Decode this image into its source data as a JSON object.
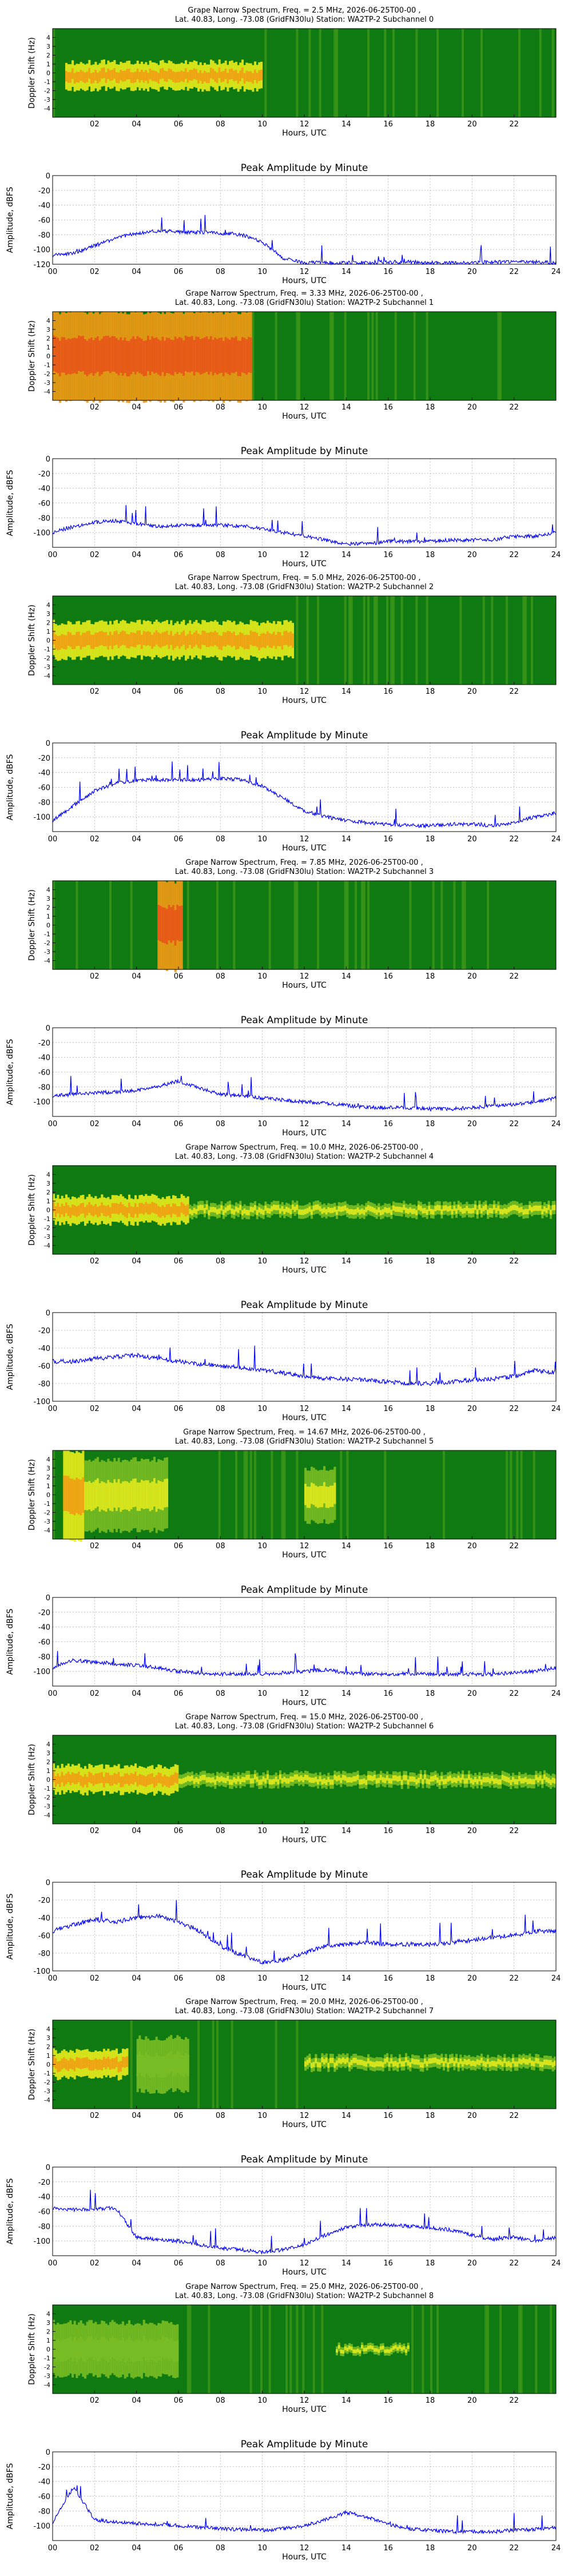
{
  "page": {
    "background": "#ffffff"
  },
  "colors": {
    "line": "#0000ff",
    "grid": "#b0b0b0",
    "axis": "#000000",
    "spec_dark": "#0f7a12",
    "spec_mid": "#79bd24",
    "spec_yellow": "#e8ec1c",
    "spec_orange": "#f29a14",
    "spec_red": "#e8501a"
  },
  "spectrum_ylabel": "Doppler Shift (Hz)",
  "spectrum_xlabel": "Hours, UTC",
  "spectrum_yticks": [
    "4",
    "3",
    "2",
    "1",
    "0",
    "-1",
    "-2",
    "-3",
    "-4"
  ],
  "spectrum_xticks": [
    "02",
    "04",
    "06",
    "08",
    "10",
    "12",
    "14",
    "16",
    "18",
    "20",
    "22"
  ],
  "amp_title": "Peak Amplitude by Minute",
  "amp_ylabel": "Amplitude, dBFS",
  "amp_xlabel": "Hours, UTC",
  "amp_xticks": [
    "00",
    "02",
    "04",
    "06",
    "08",
    "10",
    "12",
    "14",
    "16",
    "18",
    "20",
    "22",
    "24"
  ],
  "chart_data": [
    {
      "type": "heatmap",
      "title": "Grape Narrow Spectrum, Freq. = 2.5 MHz, 2026-06-25T00-00 ,",
      "subtitle": "Lat.  40.83, Long. -73.08 (GridFN30lu) Station: WA2TP-2 Subchannel 0",
      "xlabel": "Hours, UTC",
      "ylabel": "Doppler Shift (Hz)",
      "xlim": [
        0,
        24
      ],
      "ylim": [
        -5,
        5
      ],
      "bands": [
        {
          "from": 0.6,
          "to": 10.0,
          "level": 3,
          "center": -0.3,
          "width": 3.0
        }
      ]
    },
    {
      "type": "line",
      "title": "Peak Amplitude by Minute",
      "xlabel": "Hours, UTC",
      "ylabel": "Amplitude, dBFS",
      "xlim": [
        0,
        24
      ],
      "ylim": [
        -120,
        0
      ],
      "yticks": [
        "0",
        "-20",
        "-40",
        "-60",
        "-80",
        "-100",
        "-120"
      ],
      "x": [
        0,
        1,
        2,
        3,
        4,
        5,
        6,
        7,
        8,
        9,
        10,
        11,
        12,
        13,
        14,
        15,
        16,
        17,
        18,
        19,
        20,
        21,
        22,
        23,
        24
      ],
      "values": [
        -108,
        -105,
        -95,
        -85,
        -78,
        -75,
        -76,
        -77,
        -78,
        -80,
        -90,
        -112,
        -118,
        -118,
        -118,
        -118,
        -117,
        -117,
        -118,
        -118,
        -118,
        -117,
        -117,
        -117,
        -118
      ]
    },
    {
      "type": "heatmap",
      "title": "Grape Narrow Spectrum, Freq. = 3.33 MHz, 2026-06-25T00-00 ,",
      "subtitle": "Lat.  40.83, Long. -73.08 (GridFN30lu) Station: WA2TP-2 Subchannel 1",
      "xlabel": "Hours, UTC",
      "ylabel": "Doppler Shift (Hz)",
      "xlim": [
        0,
        24
      ],
      "ylim": [
        -5,
        5
      ],
      "bands": [
        {
          "from": 0.0,
          "to": 9.5,
          "level": 4,
          "center": 0,
          "width": 10
        }
      ]
    },
    {
      "type": "line",
      "title": "Peak Amplitude by Minute",
      "xlabel": "Hours, UTC",
      "ylabel": "Amplitude, dBFS",
      "xlim": [
        0,
        24
      ],
      "ylim": [
        -120,
        0
      ],
      "yticks": [
        "0",
        "-20",
        "-40",
        "-60",
        "-80",
        "-100"
      ],
      "x": [
        0,
        1,
        2,
        3,
        4,
        5,
        6,
        7,
        8,
        9,
        10,
        11,
        12,
        13,
        14,
        15,
        16,
        17,
        18,
        19,
        20,
        21,
        22,
        23,
        24
      ],
      "values": [
        -100,
        -92,
        -86,
        -84,
        -88,
        -92,
        -90,
        -90,
        -90,
        -91,
        -95,
        -100,
        -105,
        -110,
        -115,
        -115,
        -112,
        -112,
        -112,
        -110,
        -110,
        -110,
        -105,
        -105,
        -100
      ]
    },
    {
      "type": "heatmap",
      "title": "Grape Narrow Spectrum, Freq. = 5.0 MHz, 2026-06-25T00-00 ,",
      "subtitle": "Lat.  40.83, Long. -73.08 (GridFN30lu) Station: WA2TP-2 Subchannel 2",
      "xlabel": "Hours, UTC",
      "ylabel": "Doppler Shift (Hz)",
      "xlim": [
        0,
        24
      ],
      "ylim": [
        -5,
        5
      ],
      "bands": [
        {
          "from": 0.0,
          "to": 11.5,
          "level": 3,
          "center": 0,
          "width": 4
        }
      ]
    },
    {
      "type": "line",
      "title": "Peak Amplitude by Minute",
      "xlabel": "Hours, UTC",
      "ylabel": "Amplitude, dBFS",
      "xlim": [
        0,
        24
      ],
      "ylim": [
        -120,
        0
      ],
      "yticks": [
        "0",
        "-20",
        "-40",
        "-60",
        "-80",
        "-100"
      ],
      "x": [
        0,
        1,
        2,
        3,
        4,
        5,
        6,
        7,
        8,
        9,
        10,
        11,
        12,
        13,
        14,
        15,
        16,
        17,
        18,
        19,
        20,
        21,
        22,
        23,
        24
      ],
      "values": [
        -105,
        -85,
        -65,
        -55,
        -50,
        -50,
        -50,
        -50,
        -48,
        -50,
        -58,
        -75,
        -92,
        -100,
        -105,
        -108,
        -110,
        -112,
        -112,
        -110,
        -110,
        -112,
        -108,
        -100,
        -95
      ]
    },
    {
      "type": "heatmap",
      "title": "Grape Narrow Spectrum, Freq. = 7.85 MHz, 2026-06-25T00-00 ,",
      "subtitle": "Lat.  40.83, Long. -73.08 (GridFN30lu) Station: WA2TP-2 Subchannel 3",
      "xlabel": "Hours, UTC",
      "ylabel": "Doppler Shift (Hz)",
      "xlim": [
        0,
        24
      ],
      "ylim": [
        -5,
        5
      ],
      "bands": [
        {
          "from": 5.0,
          "to": 6.2,
          "level": 4,
          "center": 0,
          "width": 10
        }
      ]
    },
    {
      "type": "line",
      "title": "Peak Amplitude by Minute",
      "xlabel": "Hours, UTC",
      "ylabel": "Amplitude, dBFS",
      "xlim": [
        0,
        24
      ],
      "ylim": [
        -120,
        0
      ],
      "yticks": [
        "0",
        "-20",
        "-40",
        "-60",
        "-80",
        "-100"
      ],
      "x": [
        0,
        1,
        2,
        3,
        4,
        5,
        6,
        7,
        8,
        9,
        10,
        11,
        12,
        13,
        14,
        15,
        16,
        17,
        18,
        19,
        20,
        21,
        22,
        23,
        24
      ],
      "values": [
        -92,
        -90,
        -88,
        -87,
        -85,
        -80,
        -72,
        -82,
        -90,
        -92,
        -95,
        -98,
        -100,
        -102,
        -105,
        -108,
        -108,
        -108,
        -110,
        -110,
        -108,
        -106,
        -104,
        -100,
        -95
      ]
    },
    {
      "type": "heatmap",
      "title": "Grape Narrow Spectrum, Freq. = 10.0 MHz, 2026-06-25T00-00 ,",
      "subtitle": "Lat.  40.83, Long. -73.08 (GridFN30lu) Station: WA2TP-2 Subchannel 4",
      "xlabel": "Hours, UTC",
      "ylabel": "Doppler Shift (Hz)",
      "xlim": [
        0,
        24
      ],
      "ylim": [
        -5,
        5
      ],
      "bands": [
        {
          "from": 0.0,
          "to": 6.5,
          "level": 3,
          "center": 0,
          "width": 3
        },
        {
          "from": 6.5,
          "to": 24.0,
          "level": 2,
          "center": 0,
          "width": 1.5
        }
      ]
    },
    {
      "type": "line",
      "title": "Peak Amplitude by Minute",
      "xlabel": "Hours, UTC",
      "ylabel": "Amplitude, dBFS",
      "xlim": [
        0,
        24
      ],
      "ylim": [
        -100,
        0
      ],
      "yticks": [
        "0",
        "-20",
        "-40",
        "-60",
        "-80",
        "-100"
      ],
      "x": [
        0,
        1,
        2,
        3,
        4,
        5,
        6,
        7,
        8,
        9,
        10,
        11,
        12,
        13,
        14,
        15,
        16,
        17,
        18,
        19,
        20,
        21,
        22,
        23,
        24
      ],
      "values": [
        -55,
        -55,
        -52,
        -50,
        -48,
        -52,
        -55,
        -58,
        -60,
        -62,
        -65,
        -68,
        -72,
        -74,
        -75,
        -76,
        -78,
        -80,
        -80,
        -78,
        -76,
        -75,
        -72,
        -65,
        -68
      ]
    },
    {
      "type": "heatmap",
      "title": "Grape Narrow Spectrum, Freq. = 14.67 MHz, 2026-06-25T00-00 ,",
      "subtitle": "Lat.  40.83, Long. -73.08 (GridFN30lu) Station: WA2TP-2 Subchannel 5",
      "xlabel": "Hours, UTC",
      "ylabel": "Doppler Shift (Hz)",
      "xlim": [
        0,
        24
      ],
      "ylim": [
        -5,
        5
      ],
      "bands": [
        {
          "from": 0.5,
          "to": 1.5,
          "level": 3,
          "center": 0,
          "width": 10
        },
        {
          "from": 1.5,
          "to": 5.5,
          "level": 2,
          "center": 0,
          "width": 8
        },
        {
          "from": 12.0,
          "to": 13.5,
          "level": 2,
          "center": 0,
          "width": 6
        }
      ]
    },
    {
      "type": "line",
      "title": "Peak Amplitude by Minute",
      "xlabel": "Hours, UTC",
      "ylabel": "Amplitude, dBFS",
      "xlim": [
        0,
        24
      ],
      "ylim": [
        -120,
        0
      ],
      "yticks": [
        "0",
        "-20",
        "-40",
        "-60",
        "-80",
        "-100"
      ],
      "x": [
        0,
        1,
        2,
        3,
        4,
        5,
        6,
        7,
        8,
        9,
        10,
        11,
        12,
        13,
        14,
        15,
        16,
        17,
        18,
        19,
        20,
        21,
        22,
        23,
        24
      ],
      "values": [
        -95,
        -85,
        -88,
        -90,
        -92,
        -95,
        -100,
        -102,
        -104,
        -104,
        -104,
        -102,
        -100,
        -98,
        -102,
        -104,
        -104,
        -103,
        -104,
        -104,
        -104,
        -104,
        -102,
        -100,
        -95
      ]
    },
    {
      "type": "heatmap",
      "title": "Grape Narrow Spectrum, Freq. = 15.0 MHz, 2026-06-25T00-00 ,",
      "subtitle": "Lat.  40.83, Long. -73.08 (GridFN30lu) Station: WA2TP-2 Subchannel 6",
      "xlabel": "Hours, UTC",
      "ylabel": "Doppler Shift (Hz)",
      "xlim": [
        0,
        24
      ],
      "ylim": [
        -5,
        5
      ],
      "bands": [
        {
          "from": 0.0,
          "to": 6.0,
          "level": 3,
          "center": 0,
          "width": 3
        },
        {
          "from": 6.0,
          "to": 24.0,
          "level": 2,
          "center": 0,
          "width": 1.5
        }
      ]
    },
    {
      "type": "line",
      "title": "Peak Amplitude by Minute",
      "xlabel": "Hours, UTC",
      "ylabel": "Amplitude, dBFS",
      "xlim": [
        0,
        24
      ],
      "ylim": [
        -100,
        0
      ],
      "yticks": [
        "0",
        "-20",
        "-40",
        "-60",
        "-80",
        "-100"
      ],
      "x": [
        0,
        1,
        2,
        3,
        4,
        5,
        6,
        7,
        8,
        9,
        10,
        11,
        12,
        13,
        14,
        15,
        16,
        17,
        18,
        19,
        20,
        21,
        22,
        23,
        24
      ],
      "values": [
        -55,
        -48,
        -42,
        -45,
        -40,
        -38,
        -45,
        -55,
        -72,
        -82,
        -90,
        -88,
        -80,
        -72,
        -70,
        -68,
        -70,
        -70,
        -70,
        -68,
        -65,
        -62,
        -60,
        -55,
        -55
      ]
    },
    {
      "type": "heatmap",
      "title": "Grape Narrow Spectrum, Freq. = 20.0 MHz, 2026-06-25T00-00 ,",
      "subtitle": "Lat.  40.83, Long. -73.08 (GridFN30lu) Station: WA2TP-2 Subchannel 7",
      "xlabel": "Hours, UTC",
      "ylabel": "Doppler Shift (Hz)",
      "xlim": [
        0,
        24
      ],
      "ylim": [
        -5,
        5
      ],
      "bands": [
        {
          "from": 0.0,
          "to": 3.6,
          "level": 3,
          "center": 0,
          "width": 3
        },
        {
          "from": 4.0,
          "to": 6.5,
          "level": 1,
          "center": 0,
          "width": 6
        },
        {
          "from": 12.0,
          "to": 24.0,
          "level": 2,
          "center": 0.2,
          "width": 1.5
        }
      ]
    },
    {
      "type": "line",
      "title": "Peak Amplitude by Minute",
      "xlabel": "Hours, UTC",
      "ylabel": "Amplitude, dBFS",
      "xlim": [
        0,
        24
      ],
      "ylim": [
        -120,
        0
      ],
      "yticks": [
        "0",
        "-20",
        "-40",
        "-60",
        "-80",
        "-100"
      ],
      "x": [
        0,
        1,
        2,
        3,
        4,
        5,
        6,
        7,
        8,
        9,
        10,
        11,
        12,
        13,
        14,
        15,
        16,
        17,
        18,
        19,
        20,
        21,
        22,
        23,
        24
      ],
      "values": [
        -55,
        -58,
        -57,
        -55,
        -95,
        -98,
        -100,
        -105,
        -110,
        -112,
        -115,
        -112,
        -105,
        -92,
        -82,
        -78,
        -78,
        -80,
        -82,
        -85,
        -92,
        -98,
        -95,
        -100,
        -95
      ]
    },
    {
      "type": "heatmap",
      "title": "Grape Narrow Spectrum, Freq. = 25.0 MHz, 2026-06-25T00-00 ,",
      "subtitle": "Lat.  40.83, Long. -73.08 (GridFN30lu) Station: WA2TP-2 Subchannel 8",
      "xlabel": "Hours, UTC",
      "ylabel": "Doppler Shift (Hz)",
      "xlim": [
        0,
        24
      ],
      "ylim": [
        -5,
        5
      ],
      "bands": [
        {
          "from": 0.0,
          "to": 6.0,
          "level": 1,
          "center": 0,
          "width": 6
        },
        {
          "from": 13.5,
          "to": 17.0,
          "level": 2,
          "center": 0,
          "width": 1.0
        }
      ]
    },
    {
      "type": "line",
      "title": "Peak Amplitude by Minute",
      "xlabel": "Hours, UTC",
      "ylabel": "Amplitude, dBFS",
      "xlim": [
        0,
        24
      ],
      "ylim": [
        -120,
        0
      ],
      "yticks": [
        "0",
        "-20",
        "-40",
        "-60",
        "-80",
        "-100"
      ],
      "x": [
        0,
        1,
        2,
        3,
        4,
        5,
        6,
        7,
        8,
        9,
        10,
        11,
        12,
        13,
        14,
        15,
        16,
        17,
        18,
        19,
        20,
        21,
        22,
        23,
        24
      ],
      "values": [
        -95,
        -48,
        -92,
        -95,
        -97,
        -98,
        -100,
        -102,
        -104,
        -105,
        -106,
        -104,
        -100,
        -92,
        -82,
        -88,
        -98,
        -104,
        -106,
        -108,
        -108,
        -108,
        -106,
        -105,
        -102
      ]
    }
  ]
}
